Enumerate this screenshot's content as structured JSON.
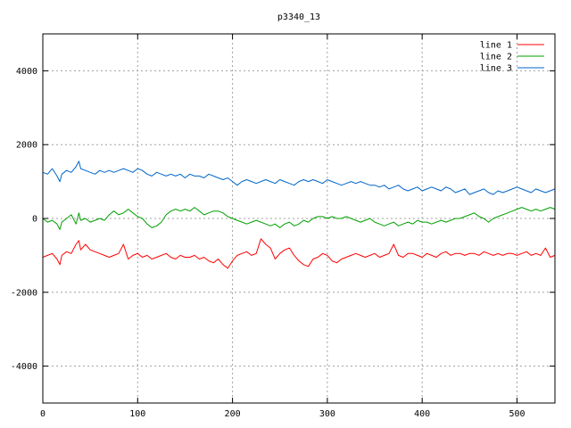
{
  "chart_data": {
    "type": "line",
    "title": "p3340_13",
    "xlabel": "",
    "ylabel": "",
    "xlim": [
      0,
      540
    ],
    "ylim": [
      -5000,
      5000
    ],
    "x_ticks": [
      0,
      100,
      200,
      300,
      400,
      500
    ],
    "y_ticks": [
      -4000,
      -2000,
      0,
      2000,
      4000
    ],
    "x_tick_labels": [
      "0",
      "100",
      "200",
      "300",
      "400",
      "500"
    ],
    "y_tick_labels": [
      "-4000",
      "-2000",
      "0",
      "2000",
      "4000"
    ],
    "grid": true,
    "legend_position": "top-right",
    "x": [
      0,
      5,
      10,
      15,
      18,
      20,
      25,
      30,
      35,
      38,
      40,
      45,
      50,
      55,
      60,
      65,
      70,
      75,
      80,
      85,
      90,
      95,
      100,
      105,
      110,
      115,
      120,
      125,
      130,
      135,
      140,
      145,
      150,
      155,
      160,
      165,
      170,
      175,
      180,
      185,
      190,
      195,
      200,
      205,
      210,
      215,
      220,
      225,
      230,
      235,
      240,
      245,
      250,
      255,
      260,
      265,
      270,
      275,
      280,
      285,
      290,
      295,
      300,
      305,
      310,
      315,
      320,
      325,
      330,
      335,
      340,
      345,
      350,
      355,
      360,
      365,
      370,
      375,
      380,
      385,
      390,
      395,
      400,
      405,
      410,
      415,
      420,
      425,
      430,
      435,
      440,
      445,
      450,
      455,
      460,
      465,
      470,
      475,
      480,
      485,
      490,
      495,
      500,
      505,
      510,
      515,
      520,
      525,
      530,
      535,
      540
    ],
    "series": [
      {
        "name": "line 1",
        "color": "#ff0000",
        "values": [
          -1050,
          -1000,
          -950,
          -1100,
          -1250,
          -1000,
          -900,
          -950,
          -700,
          -600,
          -850,
          -700,
          -850,
          -900,
          -950,
          -1000,
          -1050,
          -1000,
          -950,
          -700,
          -1100,
          -1000,
          -950,
          -1050,
          -1000,
          -1100,
          -1050,
          -1000,
          -950,
          -1050,
          -1100,
          -1000,
          -1050,
          -1050,
          -1000,
          -1100,
          -1050,
          -1150,
          -1200,
          -1100,
          -1250,
          -1350,
          -1150,
          -1000,
          -950,
          -900,
          -1000,
          -950,
          -550,
          -700,
          -800,
          -1100,
          -950,
          -850,
          -800,
          -1000,
          -1150,
          -1250,
          -1300,
          -1100,
          -1050,
          -950,
          -1000,
          -1150,
          -1200,
          -1100,
          -1050,
          -1000,
          -950,
          -1000,
          -1050,
          -1000,
          -950,
          -1050,
          -1000,
          -950,
          -700,
          -1000,
          -1050,
          -950,
          -950,
          -1000,
          -1050,
          -950,
          -1000,
          -1050,
          -950,
          -900,
          -1000,
          -950,
          -950,
          -1000,
          -950,
          -950,
          -1000,
          -900,
          -950,
          -1000,
          -950,
          -1000,
          -950,
          -950,
          -1000,
          -950,
          -900,
          -1000,
          -950,
          -1000,
          -800,
          -1050,
          -1000
        ]
      },
      {
        "name": "line 2",
        "color": "#00a000",
        "values": [
          0,
          -100,
          -50,
          -150,
          -300,
          -100,
          0,
          100,
          -150,
          150,
          -50,
          0,
          -100,
          -50,
          0,
          -50,
          100,
          200,
          100,
          150,
          250,
          150,
          50,
          0,
          -150,
          -250,
          -200,
          -100,
          100,
          200,
          250,
          200,
          250,
          200,
          300,
          200,
          100,
          150,
          200,
          200,
          150,
          50,
          0,
          -50,
          -100,
          -150,
          -100,
          -50,
          -100,
          -150,
          -200,
          -150,
          -250,
          -150,
          -100,
          -200,
          -150,
          -50,
          -100,
          0,
          50,
          50,
          0,
          50,
          0,
          0,
          50,
          0,
          -50,
          -100,
          -50,
          0,
          -100,
          -150,
          -200,
          -150,
          -100,
          -200,
          -150,
          -100,
          -150,
          -50,
          -100,
          -100,
          -150,
          -100,
          -50,
          -100,
          -50,
          0,
          0,
          50,
          100,
          150,
          50,
          0,
          -100,
          0,
          50,
          100,
          150,
          200,
          250,
          300,
          250,
          200,
          250,
          200,
          250,
          300,
          250
        ]
      },
      {
        "name": "line 3",
        "color": "#0066cc",
        "values": [
          1250,
          1200,
          1350,
          1150,
          1000,
          1200,
          1300,
          1250,
          1400,
          1550,
          1350,
          1300,
          1250,
          1200,
          1300,
          1250,
          1300,
          1250,
          1300,
          1350,
          1300,
          1250,
          1350,
          1300,
          1200,
          1150,
          1250,
          1200,
          1150,
          1200,
          1150,
          1200,
          1100,
          1200,
          1150,
          1150,
          1100,
          1200,
          1150,
          1100,
          1050,
          1100,
          1000,
          900,
          1000,
          1050,
          1000,
          950,
          1000,
          1050,
          1000,
          950,
          1050,
          1000,
          950,
          900,
          1000,
          1050,
          1000,
          1050,
          1000,
          950,
          1050,
          1000,
          950,
          900,
          950,
          1000,
          950,
          1000,
          950,
          900,
          900,
          850,
          900,
          800,
          850,
          900,
          800,
          750,
          800,
          850,
          750,
          800,
          850,
          800,
          750,
          850,
          800,
          700,
          750,
          800,
          650,
          700,
          750,
          800,
          700,
          650,
          750,
          700,
          750,
          800,
          850,
          800,
          750,
          700,
          800,
          750,
          700,
          750,
          800
        ]
      }
    ]
  }
}
